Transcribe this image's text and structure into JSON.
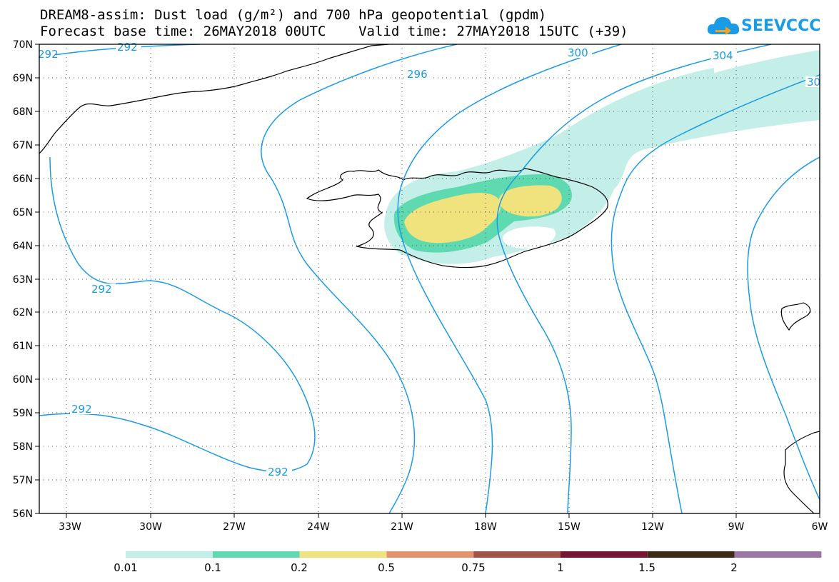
{
  "title": {
    "line1": "DREAM8-assim: Dust load (g/m²) and 700 hPa geopotential (gpdm)",
    "line2": "Forecast base time: 26MAY2018 00UTC    Valid time: 27MAY2018 15UTC (+39)"
  },
  "logo": {
    "text": "SEEVCCC",
    "icon": "cloud-icon"
  },
  "axes": {
    "lat_labels": [
      "70N",
      "69N",
      "68N",
      "67N",
      "66N",
      "65N",
      "64N",
      "63N",
      "62N",
      "61N",
      "60N",
      "59N",
      "58N",
      "57N",
      "56N"
    ],
    "lon_labels": [
      "33W",
      "30W",
      "27W",
      "24W",
      "21W",
      "18W",
      "15W",
      "12W",
      "9W",
      "6W"
    ]
  },
  "contour_labels": [
    "292",
    "292",
    "296",
    "300",
    "304",
    "30",
    "292",
    "292",
    "292"
  ],
  "colorbar": {
    "labels": [
      "0.01",
      "0.1",
      "0.2",
      "0.5",
      "0.75",
      "1",
      "1.5",
      "2"
    ],
    "colors": [
      "#c4efe8",
      "#5ed9b0",
      "#f0e27c",
      "#e5936c",
      "#a55248",
      "#7a1434",
      "#3f2a16",
      "#9d76a8"
    ]
  },
  "colors": {
    "contour": "#1a9be6",
    "coast": "#000000"
  }
}
